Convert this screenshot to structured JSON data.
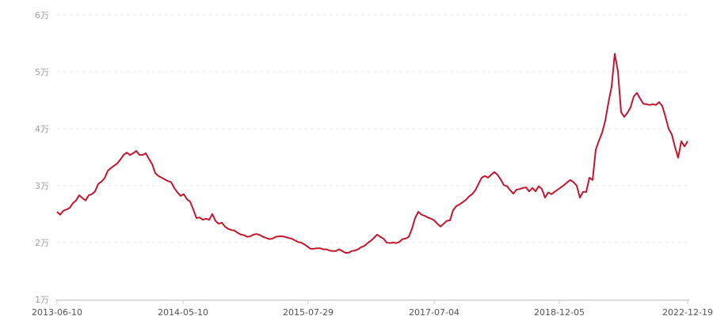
{
  "chart_data": {
    "type": "line",
    "title": "",
    "xlabel": "",
    "ylabel": "",
    "ylim": [
      1,
      6
    ],
    "y_ticks": [
      "1万",
      "2万",
      "3万",
      "4万",
      "5万",
      "6万"
    ],
    "y_tick_values": [
      1,
      2,
      3,
      4,
      5,
      6
    ],
    "x_ticks": [
      "2013-06-10",
      "2014-05-10",
      "2015-07-29",
      "2017-07-04",
      "2018-12-05",
      "2022-12-19"
    ],
    "grid": "horizontal dashed",
    "line_color": "#c8142c",
    "series": [
      {
        "values": [
          2.54,
          2.49,
          2.56,
          2.58,
          2.61,
          2.69,
          2.74,
          2.83,
          2.78,
          2.74,
          2.83,
          2.85,
          2.9,
          3.03,
          3.07,
          3.13,
          3.26,
          3.31,
          3.35,
          3.39,
          3.46,
          3.54,
          3.58,
          3.54,
          3.57,
          3.61,
          3.54,
          3.54,
          3.57,
          3.47,
          3.38,
          3.22,
          3.17,
          3.14,
          3.11,
          3.08,
          3.06,
          2.96,
          2.88,
          2.82,
          2.85,
          2.76,
          2.72,
          2.58,
          2.43,
          2.44,
          2.4,
          2.42,
          2.4,
          2.5,
          2.38,
          2.33,
          2.35,
          2.28,
          2.24,
          2.22,
          2.21,
          2.17,
          2.14,
          2.13,
          2.1,
          2.11,
          2.14,
          2.15,
          2.13,
          2.1,
          2.08,
          2.06,
          2.07,
          2.1,
          2.11,
          2.11,
          2.1,
          2.08,
          2.07,
          2.04,
          2.01,
          2.0,
          1.97,
          1.93,
          1.89,
          1.89,
          1.9,
          1.9,
          1.88,
          1.88,
          1.86,
          1.85,
          1.85,
          1.88,
          1.85,
          1.82,
          1.82,
          1.85,
          1.86,
          1.88,
          1.92,
          1.94,
          1.99,
          2.03,
          2.08,
          2.14,
          2.1,
          2.07,
          2.0,
          1.99,
          2.0,
          1.99,
          2.01,
          2.06,
          2.07,
          2.1,
          2.24,
          2.43,
          2.54,
          2.49,
          2.47,
          2.44,
          2.42,
          2.39,
          2.33,
          2.28,
          2.33,
          2.38,
          2.39,
          2.57,
          2.64,
          2.67,
          2.71,
          2.75,
          2.81,
          2.85,
          2.92,
          3.03,
          3.14,
          3.17,
          3.14,
          3.19,
          3.24,
          3.19,
          3.11,
          3.01,
          2.99,
          2.92,
          2.86,
          2.93,
          2.94,
          2.96,
          2.97,
          2.9,
          2.96,
          2.9,
          2.99,
          2.94,
          2.79,
          2.88,
          2.85,
          2.89,
          2.93,
          2.97,
          3.01,
          3.06,
          3.1,
          3.06,
          3.0,
          2.79,
          2.89,
          2.89,
          3.14,
          3.1,
          3.63,
          3.79,
          3.93,
          4.14,
          4.46,
          4.74,
          5.32,
          5.01,
          4.29,
          4.21,
          4.28,
          4.38,
          4.57,
          4.63,
          4.53,
          4.44,
          4.43,
          4.42,
          4.43,
          4.42,
          4.47,
          4.4,
          4.21,
          4.0,
          3.9,
          3.68,
          3.49,
          3.78,
          3.69,
          3.78
        ]
      }
    ]
  }
}
